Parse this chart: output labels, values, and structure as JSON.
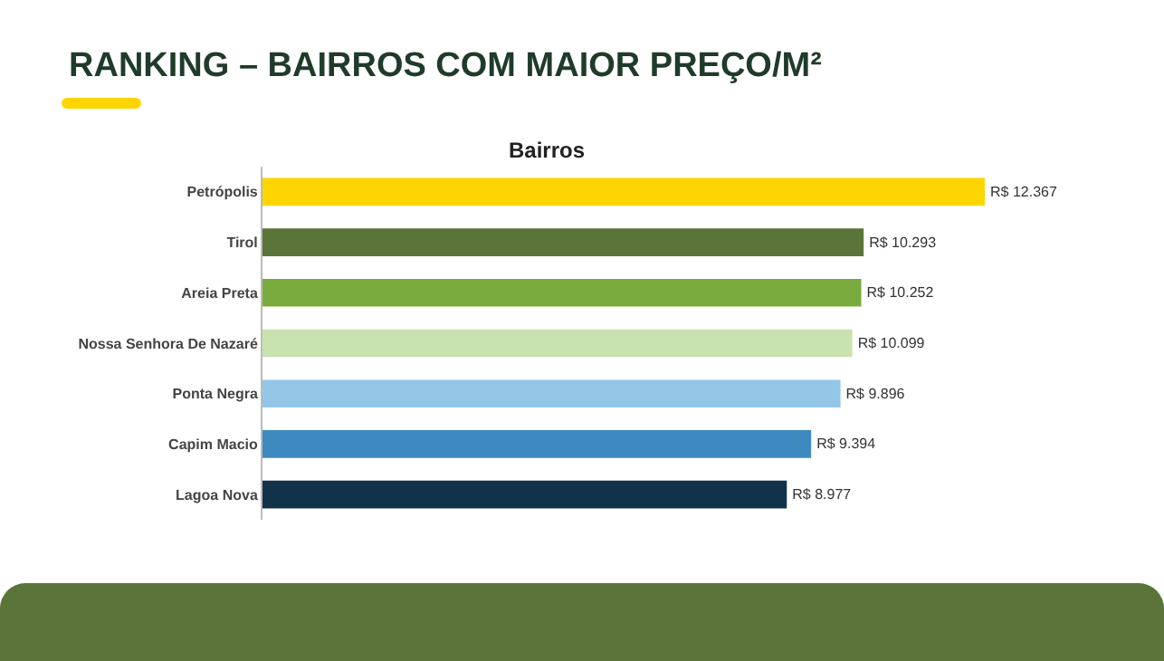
{
  "chart_data": {
    "type": "bar",
    "orientation": "horizontal",
    "title": "RANKING – BAIRROS COM MAIOR PREÇO/M²",
    "ylabel": "Bairros",
    "categories": [
      "Petrópolis",
      "Tirol",
      "Areia Preta",
      "Nossa Senhora De Nazaré",
      "Ponta Negra",
      "Capim Macio",
      "Lagoa Nova"
    ],
    "values": [
      12367,
      10293,
      10252,
      10099,
      9896,
      9394,
      8977
    ],
    "colors": [
      "#ffd500",
      "#5a7439",
      "#7aab3e",
      "#c9e3b0",
      "#94c6e8",
      "#3e8ac0",
      "#12324a"
    ],
    "value_labels": [
      "R$ 12.367",
      "R$ 10.293",
      "R$ 10.252",
      "R$ 10.099",
      "R$ 9.896",
      "R$ 9.394",
      "R$ 8.977"
    ],
    "grid": false,
    "legend": false
  }
}
